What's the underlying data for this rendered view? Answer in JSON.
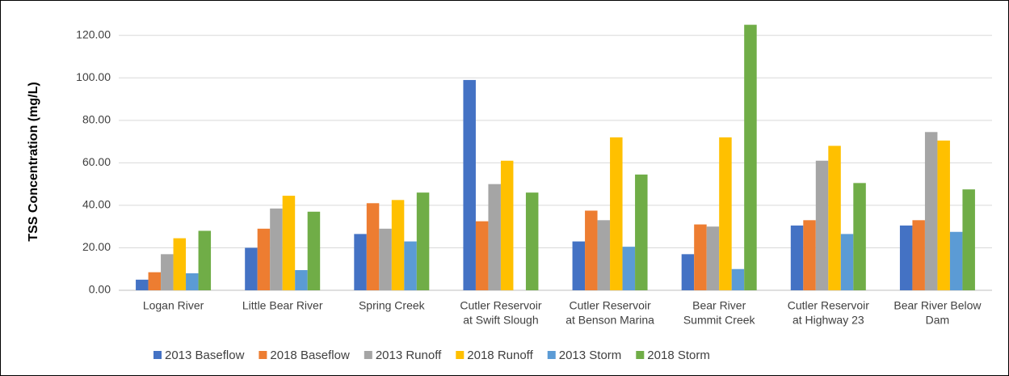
{
  "chart_data": {
    "type": "bar",
    "y_label": "TSS Concentration (mg/L)",
    "categories": [
      [
        "Logan River"
      ],
      [
        "Little Bear River"
      ],
      [
        "Spring Creek"
      ],
      [
        "Cutler Reservoir",
        "at Swift Slough"
      ],
      [
        "Cutler Reservoir",
        "at Benson Marina"
      ],
      [
        "Bear River",
        "Summit Creek"
      ],
      [
        "Cutler Reservoir",
        "at Highway 23"
      ],
      [
        "Bear River Below",
        "Dam"
      ]
    ],
    "series": [
      {
        "name": "2013 Baseflow",
        "color": "#4472c4",
        "values": [
          5,
          20,
          26.5,
          99,
          23,
          17,
          30.5,
          30.5
        ]
      },
      {
        "name": "2018 Baseflow",
        "color": "#ed7d31",
        "values": [
          8.5,
          29,
          41,
          32.5,
          37.5,
          31,
          33,
          33
        ]
      },
      {
        "name": "2013 Runoff",
        "color": "#a5a5a5",
        "values": [
          17,
          38.5,
          29,
          50,
          33,
          30,
          61,
          74.5
        ]
      },
      {
        "name": "2018 Runoff",
        "color": "#ffc000",
        "values": [
          24.5,
          44.5,
          42.5,
          61,
          72,
          72,
          68,
          70.5
        ]
      },
      {
        "name": "2013 Storm",
        "color": "#5b9bd5",
        "values": [
          8,
          9.5,
          23,
          null,
          20.5,
          10,
          26.5,
          27.5
        ]
      },
      {
        "name": "2018 Storm",
        "color": "#70ad47",
        "values": [
          28,
          37,
          46,
          46,
          54.5,
          125,
          50.5,
          47.5
        ]
      }
    ],
    "ylim": [
      0,
      126
    ],
    "yticks": [
      {
        "value": 0,
        "label": "0.00"
      },
      {
        "value": 20,
        "label": "20.00"
      },
      {
        "value": 40,
        "label": "40.00"
      },
      {
        "value": 60,
        "label": "60.00"
      },
      {
        "value": 80,
        "label": "80.00"
      },
      {
        "value": 100,
        "label": "100.00"
      },
      {
        "value": 120,
        "label": "120.00"
      }
    ],
    "grid": true,
    "legend": "bottom"
  }
}
